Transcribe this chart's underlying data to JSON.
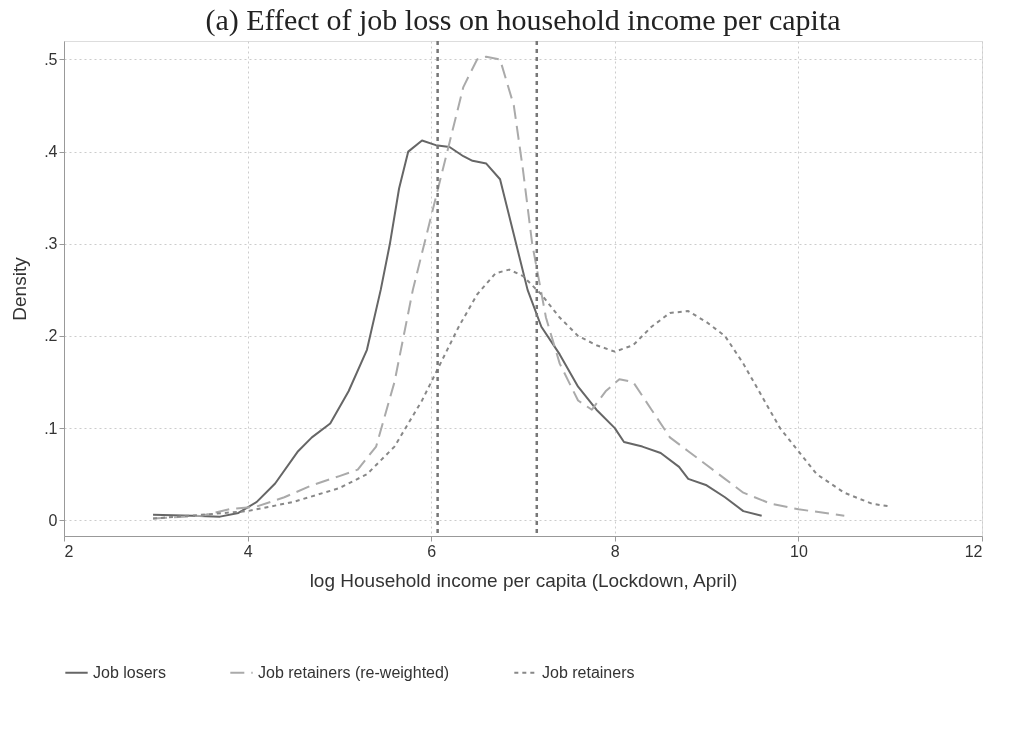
{
  "chart_data": {
    "type": "line",
    "title": "(a)  Effect of job loss on household income per capita",
    "xlabel": "log Household income per capita (Lockdown, April)",
    "ylabel": "Density",
    "xlim": [
      2,
      12
    ],
    "xticks": [
      2,
      4,
      6,
      8,
      10,
      12
    ],
    "ylim": [
      -0.017,
      0.52
    ],
    "yticks": [
      0,
      {
        "value": 0.1,
        "label": ".1"
      },
      {
        "value": 0.2,
        "label": ".2"
      },
      {
        "value": 0.3,
        "label": ".3"
      },
      {
        "value": 0.4,
        "label": ".4"
      },
      {
        "value": 0.5,
        "label": ".5"
      }
    ],
    "grid": true,
    "legend": "bottom",
    "marker": "none",
    "series": [
      {
        "name": "Job losers",
        "color": "#666666",
        "line_style": "solid",
        "x": [
          2.97,
          3.4,
          3.7,
          3.9,
          4.1,
          4.3,
          4.55,
          4.7,
          4.9,
          5.1,
          5.3,
          5.45,
          5.55,
          5.65,
          5.75,
          5.9,
          6.05,
          6.2,
          6.35,
          6.45,
          6.6,
          6.75,
          6.9,
          7.05,
          7.2,
          7.4,
          7.6,
          7.8,
          8.0,
          8.1,
          8.3,
          8.5,
          8.7,
          8.8,
          9.0,
          9.2,
          9.4,
          9.6
        ],
        "values": [
          0.006,
          0.005,
          0.004,
          0.008,
          0.02,
          0.04,
          0.075,
          0.09,
          0.105,
          0.14,
          0.185,
          0.25,
          0.3,
          0.36,
          0.4,
          0.412,
          0.407,
          0.405,
          0.395,
          0.39,
          0.387,
          0.37,
          0.31,
          0.25,
          0.21,
          0.18,
          0.145,
          0.12,
          0.1,
          0.085,
          0.08,
          0.073,
          0.058,
          0.045,
          0.038,
          0.025,
          0.01,
          0.005
        ]
      },
      {
        "name": "Job retainers (re-weighted)",
        "color": "#aaaaaa",
        "line_style": "dashed",
        "x": [
          2.97,
          3.5,
          3.8,
          4.1,
          4.4,
          4.7,
          5.0,
          5.2,
          5.4,
          5.6,
          5.8,
          6.0,
          6.2,
          6.35,
          6.5,
          6.6,
          6.75,
          6.9,
          7.0,
          7.1,
          7.25,
          7.4,
          7.6,
          7.75,
          7.9,
          8.05,
          8.2,
          8.4,
          8.6,
          8.8,
          9.0,
          9.2,
          9.4,
          9.7,
          10.0,
          10.5
        ],
        "values": [
          0.002,
          0.005,
          0.012,
          0.015,
          0.025,
          0.038,
          0.048,
          0.055,
          0.08,
          0.15,
          0.25,
          0.33,
          0.41,
          0.47,
          0.5,
          0.503,
          0.5,
          0.45,
          0.38,
          0.3,
          0.22,
          0.17,
          0.13,
          0.12,
          0.14,
          0.153,
          0.15,
          0.12,
          0.09,
          0.075,
          0.06,
          0.045,
          0.03,
          0.018,
          0.012,
          0.005
        ]
      },
      {
        "name": "Job retainers",
        "color": "#888888",
        "line_style": "dotted",
        "x": [
          2.97,
          3.5,
          4.0,
          4.5,
          5.0,
          5.3,
          5.6,
          5.9,
          6.1,
          6.3,
          6.5,
          6.7,
          6.85,
          7.0,
          7.2,
          7.4,
          7.6,
          7.8,
          8.0,
          8.2,
          8.4,
          8.6,
          8.8,
          9.0,
          9.2,
          9.4,
          9.6,
          9.8,
          10.0,
          10.2,
          10.5,
          10.8,
          11.0
        ],
        "values": [
          0.002,
          0.006,
          0.01,
          0.02,
          0.035,
          0.05,
          0.08,
          0.13,
          0.17,
          0.21,
          0.245,
          0.268,
          0.272,
          0.265,
          0.245,
          0.22,
          0.2,
          0.19,
          0.183,
          0.19,
          0.21,
          0.225,
          0.227,
          0.215,
          0.2,
          0.17,
          0.135,
          0.1,
          0.075,
          0.05,
          0.03,
          0.018,
          0.015
        ]
      }
    ],
    "ref_lines": [
      {
        "axis": "x",
        "value": 6.07,
        "color": "#777777",
        "line_style": "dotted"
      },
      {
        "axis": "x",
        "value": 7.15,
        "color": "#777777",
        "line_style": "dotted"
      }
    ]
  }
}
